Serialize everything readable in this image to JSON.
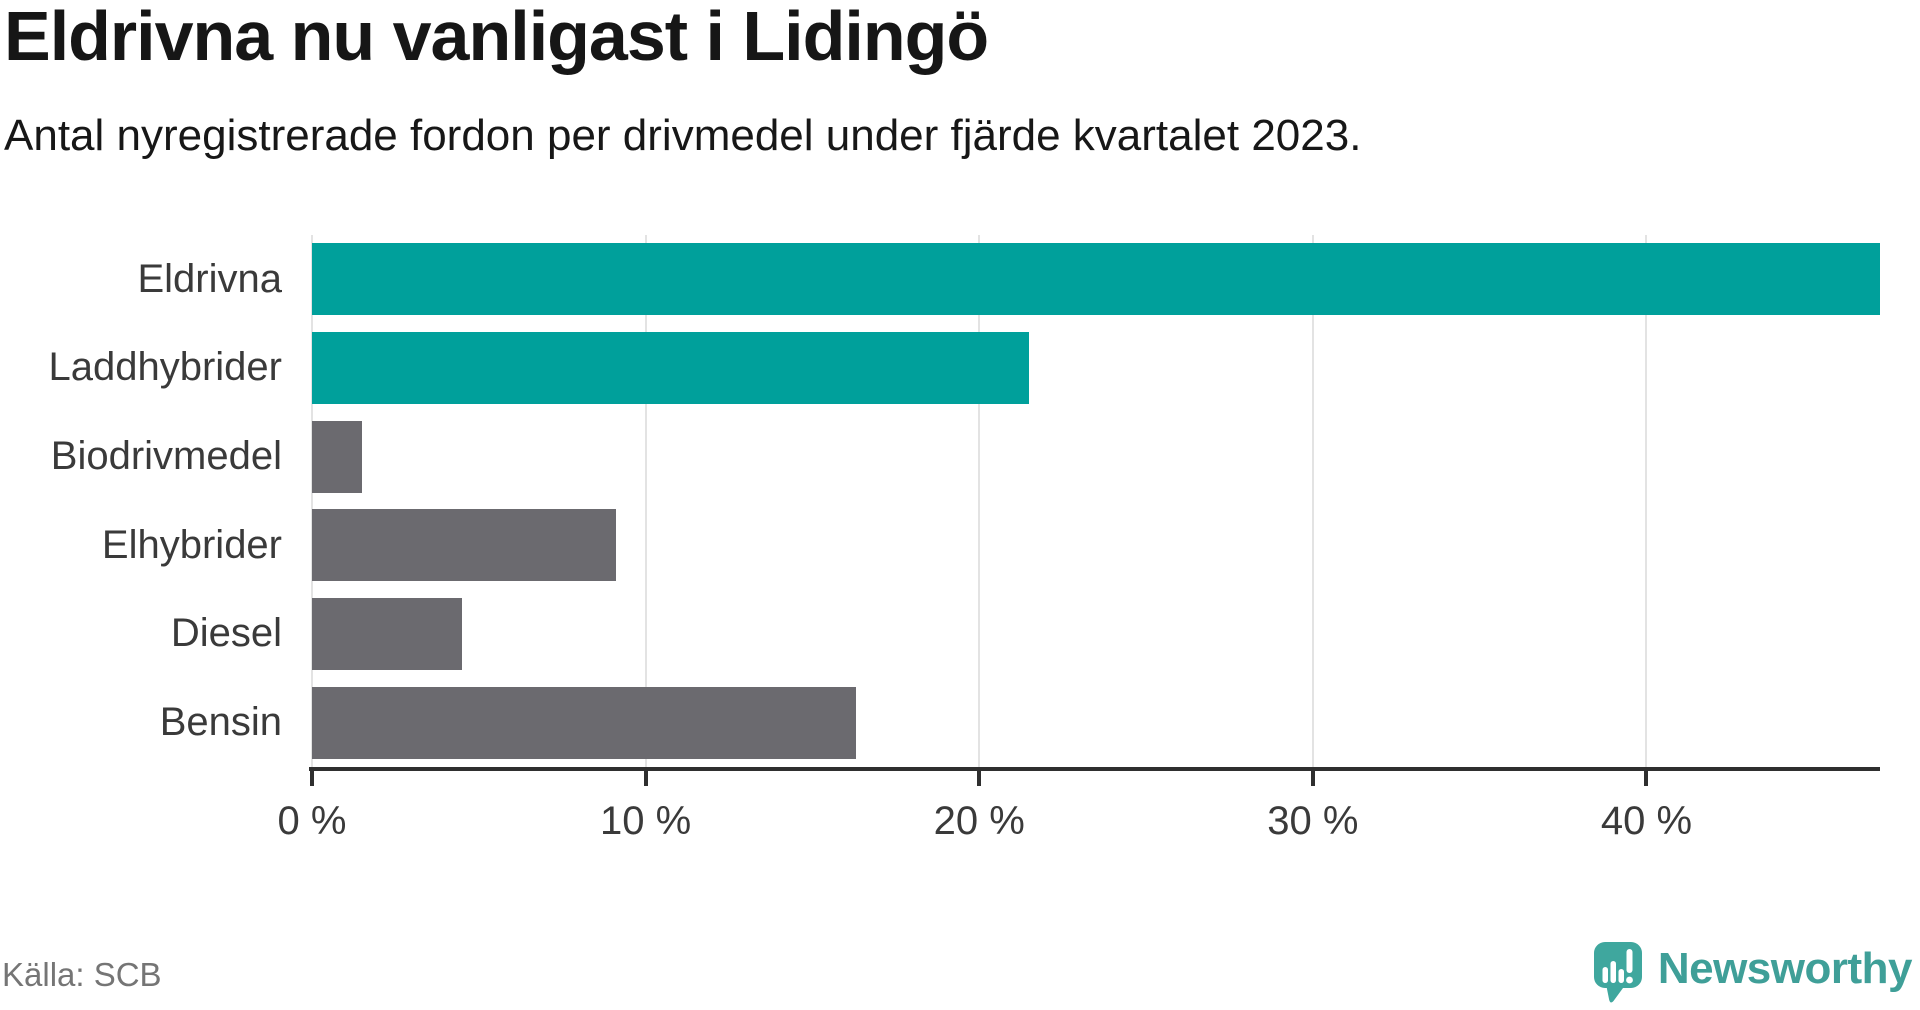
{
  "header": {
    "title": "Eldrivna nu vanligast i Lidingö",
    "subtitle": "Antal nyregistrerade fordon per drivmedel under fjärde kvartalet 2023."
  },
  "source": {
    "label": "Källa: SCB"
  },
  "branding": {
    "name": "Newsworthy",
    "icon": "newsworthy-pin-chart-icon"
  },
  "colors": {
    "accent_teal": "#00a09b",
    "bar_gray": "#6b6a6f",
    "gridline": "#e3e3e3",
    "axis": "#2f2f2f",
    "logo_teal": "#3fa79e",
    "wordmark_teal": "#3f9f98",
    "label_gray": "#3a3a3a",
    "source_gray": "#757575"
  },
  "chart_data": {
    "type": "bar",
    "orientation": "horizontal",
    "title": "Eldrivna nu vanligast i Lidingö",
    "subtitle": "Antal nyregistrerade fordon per drivmedel under fjärde kvartalet 2023.",
    "categories": [
      "Eldrivna",
      "Laddhybrider",
      "Biodrivmedel",
      "Elhybrider",
      "Diesel",
      "Bensin"
    ],
    "values": [
      47,
      21.5,
      1.5,
      9.1,
      4.5,
      16.3
    ],
    "unit": "%",
    "bar_color_roles": [
      "accent",
      "accent",
      "neutral",
      "neutral",
      "neutral",
      "neutral"
    ],
    "xlim": [
      0,
      47
    ],
    "xticks": [
      0,
      10,
      20,
      30,
      40
    ],
    "xtick_labels": [
      "0 %",
      "10 %",
      "20 %",
      "30 %",
      "40 %"
    ],
    "grid": "vertical-behind-bars",
    "legend": "none",
    "ylabel": "",
    "xlabel": ""
  }
}
